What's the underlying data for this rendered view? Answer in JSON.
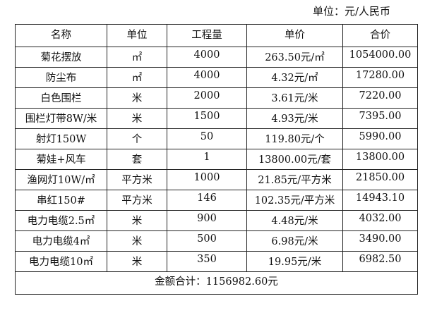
{
  "unit_note": "单位：元/人民币",
  "table": {
    "headers": [
      "名称",
      "单位",
      "工程量",
      "单价",
      "合价"
    ],
    "rows": [
      [
        "菊花摆放",
        "㎡",
        "4000",
        "263.50元/㎡",
        "1054000.00"
      ],
      [
        "防尘布",
        "㎡",
        "4000",
        "4.32元/㎡",
        "17280.00"
      ],
      [
        "白色围栏",
        "米",
        "2000",
        "3.61元/米",
        "7220.00"
      ],
      [
        "围栏灯带8W/米",
        "米",
        "1500",
        "4.93元/米",
        "7395.00"
      ],
      [
        "射灯150W",
        "个",
        "50",
        "119.80元/个",
        "5990.00"
      ],
      [
        "菊娃+风车",
        "套",
        "1",
        "13800.00元/套",
        "13800.00"
      ],
      [
        "渔网灯10W/㎡",
        "平方米",
        "1000",
        "21.85元/平方米",
        "21850.00"
      ],
      [
        "串红150#",
        "平方米",
        "146",
        "102.35元/平方米",
        "14943.10"
      ],
      [
        "电力电缆2.5㎡",
        "米",
        "900",
        "4.48元/米",
        "4032.00"
      ],
      [
        "电力电缆4㎡",
        "米",
        "500",
        "6.98元/米",
        "3490.00"
      ],
      [
        "电力电缆10㎡",
        "米",
        "350",
        "19.95元/米",
        "6982.50"
      ]
    ],
    "total": "金额合计：1156982.60元"
  }
}
